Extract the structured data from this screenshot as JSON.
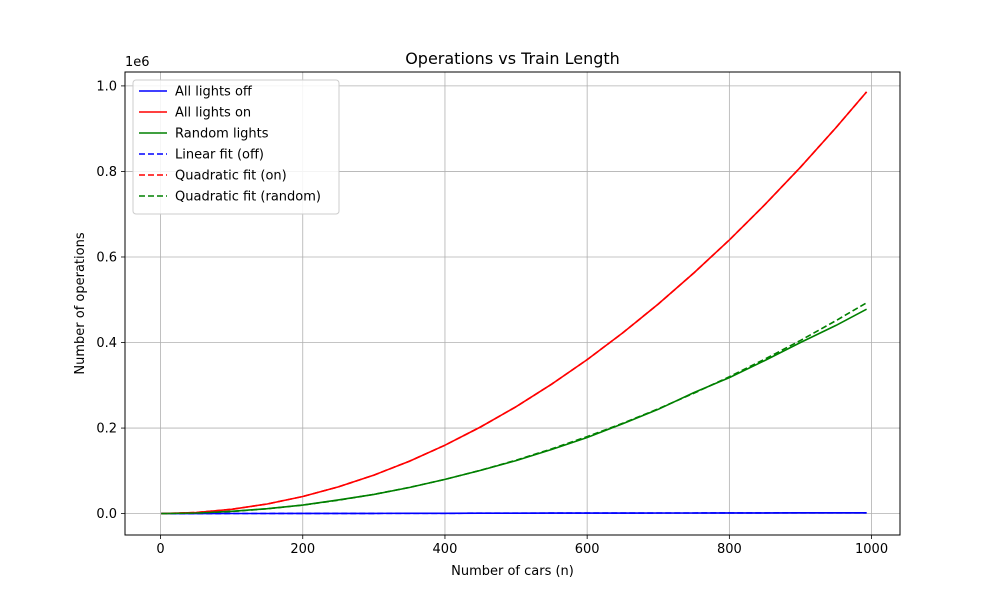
{
  "chart_data": {
    "type": "line",
    "title": "Operations vs Train Length",
    "xlabel": "Number of cars (n)",
    "ylabel": "Number of operations",
    "y_offset_label": "1e6",
    "xlim": [
      -50,
      1040
    ],
    "ylim": [
      -0.05,
      1.0325
    ],
    "y_scale": 1000000,
    "xticks": [
      0,
      200,
      400,
      600,
      800,
      1000
    ],
    "xtick_labels": [
      "0",
      "200",
      "400",
      "600",
      "800",
      "1000"
    ],
    "yticks": [
      0.0,
      0.2,
      0.4,
      0.6,
      0.8,
      1.0
    ],
    "ytick_labels": [
      "0.0",
      "0.2",
      "0.4",
      "0.6",
      "0.8",
      "1.0"
    ],
    "grid": true,
    "legend_position": "top-left",
    "x": [
      1,
      50,
      100,
      150,
      200,
      250,
      300,
      350,
      400,
      450,
      500,
      550,
      600,
      650,
      700,
      750,
      800,
      850,
      900,
      950,
      993
    ],
    "series": [
      {
        "name": "All lights off",
        "color": "#0000ff",
        "style": "solid",
        "values": [
          0,
          100,
          200,
          300,
          400,
          500,
          600,
          700,
          800,
          900,
          1000,
          1100,
          1200,
          1300,
          1400,
          1500,
          1600,
          1700,
          1800,
          1900,
          1986
        ]
      },
      {
        "name": "All lights on",
        "color": "#ff0000",
        "style": "solid",
        "values": [
          1,
          2500,
          10000,
          22500,
          40000,
          62500,
          90000,
          122500,
          160000,
          202500,
          250000,
          302500,
          360000,
          422500,
          490000,
          562500,
          640000,
          722500,
          810000,
          902500,
          986049
        ]
      },
      {
        "name": "Random lights",
        "color": "#008000",
        "style": "solid",
        "values": [
          0,
          1500,
          5500,
          11500,
          20000,
          32000,
          45000,
          61000,
          80000,
          101000,
          124000,
          150000,
          178000,
          210000,
          244000,
          283000,
          318000,
          358000,
          400000,
          440000,
          478000
        ]
      },
      {
        "name": "Linear fit (off)",
        "color": "#0000ff",
        "style": "dashed",
        "values": [
          0,
          100,
          200,
          300,
          400,
          500,
          600,
          700,
          800,
          900,
          1000,
          1100,
          1200,
          1300,
          1400,
          1500,
          1600,
          1700,
          1800,
          1900,
          1986
        ]
      },
      {
        "name": "Quadratic fit (on)",
        "color": "#ff0000",
        "style": "dashed",
        "values": [
          1,
          2500,
          10000,
          22500,
          40000,
          62500,
          90000,
          122500,
          160000,
          202500,
          250000,
          302500,
          360000,
          422500,
          490000,
          562500,
          640000,
          722500,
          810000,
          902500,
          986049
        ]
      },
      {
        "name": "Quadratic fit (random)",
        "color": "#008000",
        "style": "dashed",
        "values": [
          0,
          1250,
          5000,
          11250,
          20000,
          31250,
          45000,
          61250,
          80000,
          101250,
          125000,
          151250,
          180000,
          211250,
          245000,
          281250,
          320000,
          361250,
          405000,
          451250,
          493000
        ]
      }
    ]
  }
}
